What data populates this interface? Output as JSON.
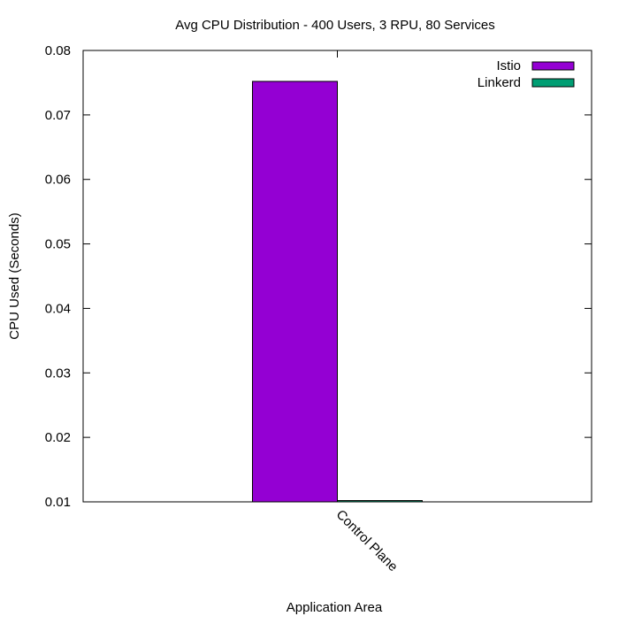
{
  "chart_data": {
    "type": "bar",
    "title": "Avg CPU Distribution - 400 Users, 3 RPU, 80 Services",
    "xlabel": "Application Area",
    "ylabel": "CPU Used (Seconds)",
    "categories": [
      "Control Plane"
    ],
    "series": [
      {
        "name": "Istio",
        "values": [
          0.0752
        ],
        "color": "#9400d3"
      },
      {
        "name": "Linkerd",
        "values": [
          0.0102
        ],
        "color": "#009e73"
      }
    ],
    "ylim": [
      0.01,
      0.08
    ],
    "yticks": [
      "0.01",
      "0.02",
      "0.03",
      "0.04",
      "0.05",
      "0.06",
      "0.07",
      "0.08"
    ],
    "grid": false,
    "legend_position": "top-right"
  }
}
